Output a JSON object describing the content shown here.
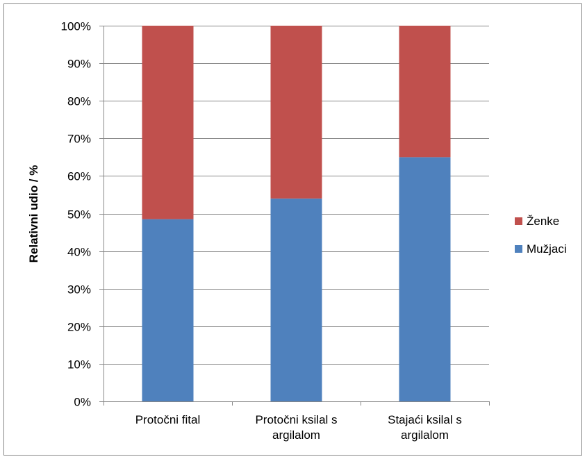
{
  "chart_data": {
    "type": "bar",
    "stacked": "percent",
    "categories": [
      [
        "Protočni fital"
      ],
      [
        "Protočni ksilal s",
        "argilalom"
      ],
      [
        "Stajaći ksilal s",
        "argilalom"
      ]
    ],
    "series": [
      {
        "name": "Mužjaci",
        "color": "#4F81BD",
        "values": [
          48.5,
          54,
          65
        ]
      },
      {
        "name": "Ženke",
        "color": "#C0504D",
        "values": [
          51.5,
          46,
          35
        ]
      }
    ],
    "ylabel": "Relativni udio / %",
    "xlabel": "",
    "ylim": [
      0,
      100
    ],
    "yticks": [
      "0%",
      "10%",
      "20%",
      "30%",
      "40%",
      "50%",
      "60%",
      "70%",
      "80%",
      "90%",
      "100%"
    ],
    "grid": true,
    "legend": {
      "placement": "right",
      "entries": [
        {
          "label": "Ženke",
          "color": "#C0504D"
        },
        {
          "label": "Mužjaci",
          "color": "#4F81BD"
        }
      ]
    }
  }
}
